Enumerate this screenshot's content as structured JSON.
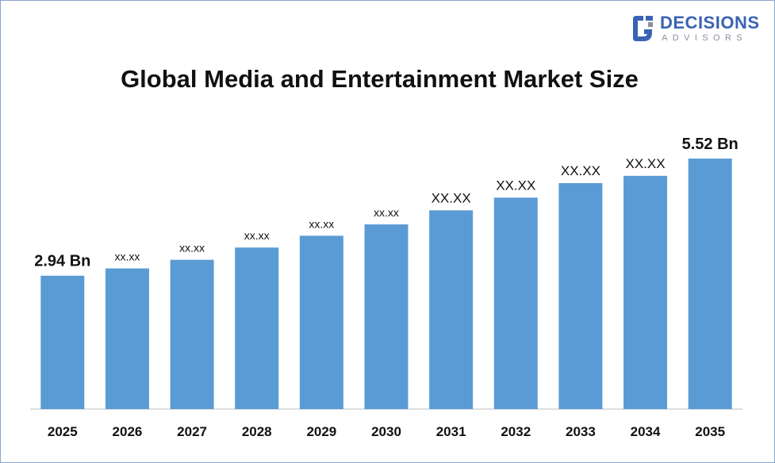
{
  "brand": {
    "name": "DECISIONS",
    "tagline": "ADVISORS",
    "color": "#3b63b3",
    "logo_icon": "decisions-advisors-logo-icon"
  },
  "chart_data": {
    "type": "bar",
    "title": "Global Media and Entertainment Market Size",
    "xlabel": "",
    "ylabel": "",
    "categories": [
      "2025",
      "2026",
      "2027",
      "2028",
      "2029",
      "2030",
      "2031",
      "2032",
      "2033",
      "2034",
      "2035"
    ],
    "values": [
      2.94,
      3.1,
      3.29,
      3.56,
      3.82,
      4.07,
      4.38,
      4.66,
      4.98,
      5.14,
      5.52
    ],
    "data_labels": [
      "2.94 Bn",
      "xx.xx",
      "xx.xx",
      "xx.xx",
      "xx.xx",
      "xx.xx",
      "XX.XX",
      "XX.XX",
      "XX.XX",
      "XX.XX",
      "5.52 Bn"
    ],
    "ylim": [
      0,
      6.15
    ],
    "bar_color": "#5b9bd5",
    "grid": false,
    "legend": "none"
  }
}
